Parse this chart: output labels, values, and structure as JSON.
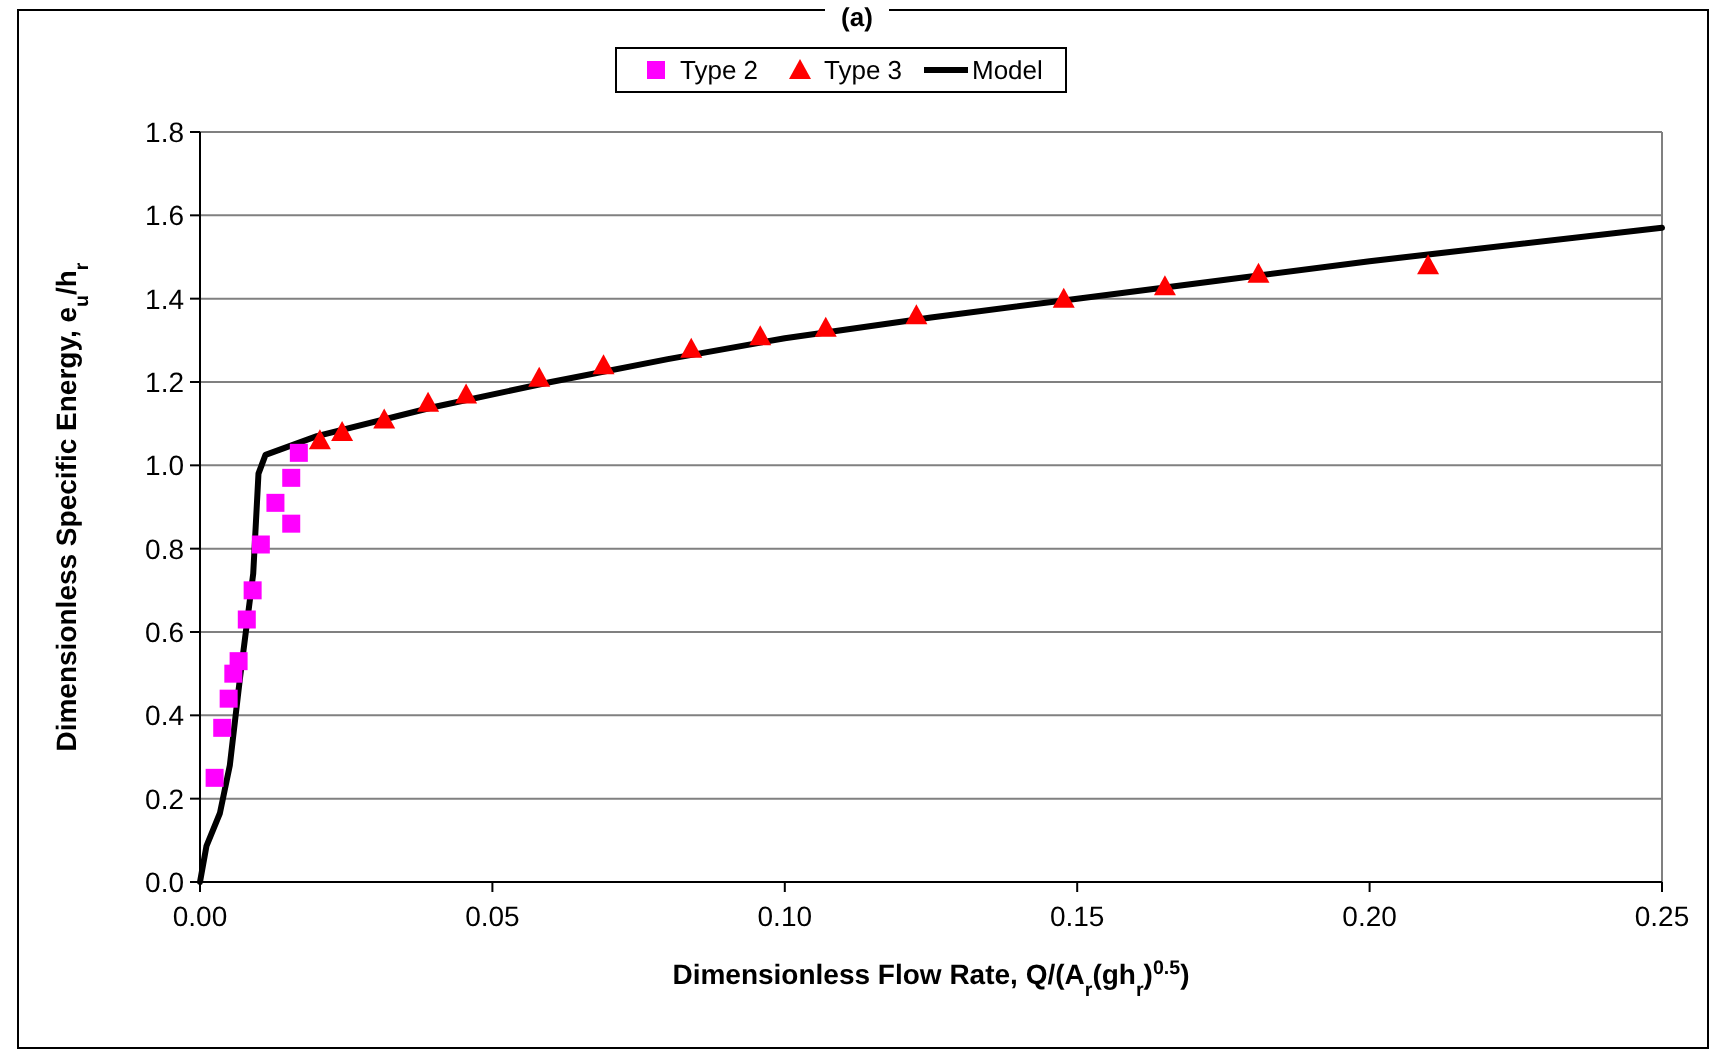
{
  "chart_data": {
    "type": "scatter",
    "title": "(a)",
    "xlabel": "Dimensionless Flow Rate, Q/(A$_{r}$(gh$_{r}$)$^{0.5}$)",
    "ylabel": "Dimensionless Specific Energy, e$_{u}$/h$_{r}$",
    "xlim": [
      0,
      0.25
    ],
    "xticks": [
      {
        "value": 0,
        "label": "0.00"
      },
      {
        "value": 0.05,
        "label": "0.05"
      },
      {
        "value": 0.1,
        "label": "0.10"
      },
      {
        "value": 0.15,
        "label": "0.15"
      },
      {
        "value": 0.2,
        "label": "0.20"
      },
      {
        "value": 0.25,
        "label": "0.25"
      }
    ],
    "ylim": [
      0,
      1.8
    ],
    "yticks": [
      {
        "value": 0,
        "label": "0.0"
      },
      {
        "value": 0.2,
        "label": "0.2"
      },
      {
        "value": 0.4,
        "label": "0.4"
      },
      {
        "value": 0.6,
        "label": "0.6"
      },
      {
        "value": 0.8,
        "label": "0.8"
      },
      {
        "value": 1,
        "label": "1.0"
      },
      {
        "value": 1.2,
        "label": "1.2"
      },
      {
        "value": 1.4,
        "label": "1.4"
      },
      {
        "value": 1.6,
        "label": "1.6"
      },
      {
        "value": 1.8,
        "label": "1.8"
      }
    ],
    "grid": "y",
    "legend": "top",
    "series": [
      {
        "name": "Type 2",
        "marker": "square",
        "color": "#ff00ff",
        "x": [
          0.0025,
          0.0038,
          0.0049,
          0.0057,
          0.0066,
          0.008,
          0.009,
          0.0104,
          0.0129,
          0.0156,
          0.0156,
          0.0169
        ],
        "values": [
          0.25,
          0.37,
          0.44,
          0.5,
          0.53,
          0.63,
          0.7,
          0.81,
          0.91,
          0.86,
          0.97,
          1.03
        ]
      },
      {
        "name": "Type 3",
        "marker": "triangle",
        "color": "#ff0000",
        "x": [
          0.0205,
          0.0243,
          0.0315,
          0.039,
          0.0455,
          0.058,
          0.069,
          0.084,
          0.0958,
          0.107,
          0.1225,
          0.1477,
          0.165,
          0.181,
          0.21
        ],
        "values": [
          1.06,
          1.08,
          1.11,
          1.15,
          1.17,
          1.21,
          1.24,
          1.28,
          1.31,
          1.33,
          1.36,
          1.4,
          1.43,
          1.46,
          1.48
        ]
      },
      {
        "name": "Model",
        "type": "line",
        "marker": "none",
        "line_style": "solid",
        "color": "#000000",
        "x": [
          0,
          0.0011,
          0.0034,
          0.0051,
          0.0068,
          0.0091,
          0.01,
          0.0112,
          0.02,
          0.04,
          0.06,
          0.08,
          0.1,
          0.125,
          0.15,
          0.175,
          0.2,
          0.25
        ],
        "values": [
          0,
          0.086,
          0.165,
          0.28,
          0.485,
          0.74,
          0.98,
          1.025,
          1.07,
          1.14,
          1.2,
          1.255,
          1.305,
          1.355,
          1.4,
          1.445,
          1.49,
          1.57
        ]
      }
    ]
  }
}
